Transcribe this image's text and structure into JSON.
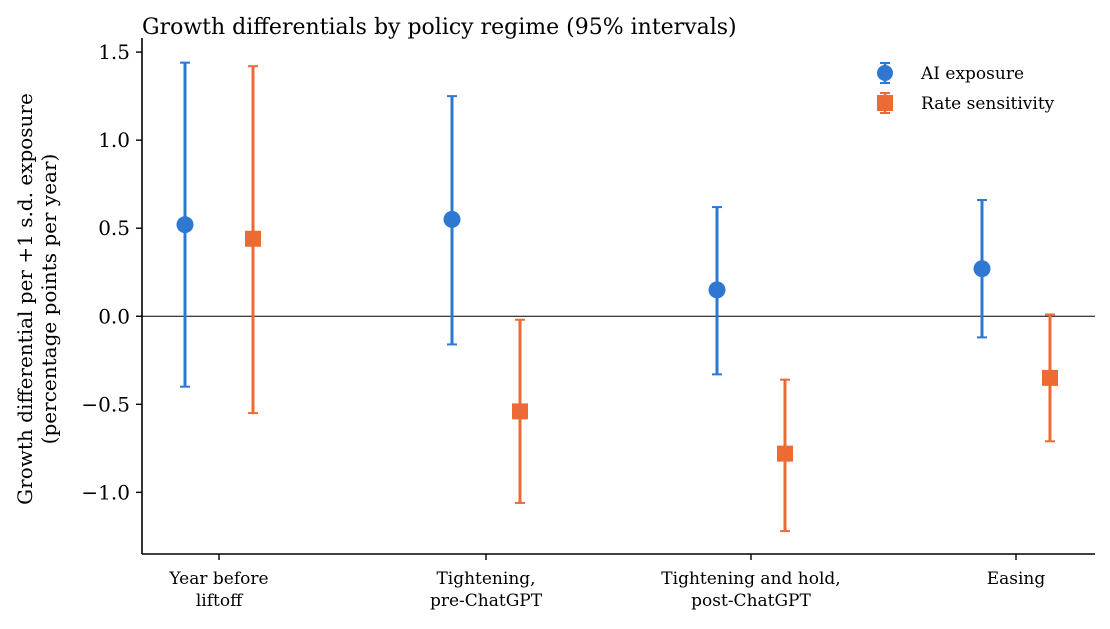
{
  "chart_data": {
    "type": "errorbar",
    "title": "Growth differentials by policy regime (95% intervals)",
    "ylabel_lines": [
      "Growth differential per +1 s.d. exposure",
      "(percentage points per year)"
    ],
    "xlabel": "",
    "categories": [
      {
        "lines": [
          "Year before",
          "liftoff"
        ]
      },
      {
        "lines": [
          "Tightening,",
          "pre-ChatGPT"
        ]
      },
      {
        "lines": [
          "Tightening and hold,",
          "post-ChatGPT"
        ]
      },
      {
        "lines": [
          "Easing"
        ]
      }
    ],
    "ylim": [
      -1.35,
      1.58
    ],
    "yticks": [
      -1.0,
      -0.5,
      0.0,
      0.5,
      1.0,
      1.5
    ],
    "ytick_labels": [
      "−1.0",
      "−0.5",
      "0.0",
      "0.5",
      "1.0",
      "1.5"
    ],
    "zero_line": true,
    "grid": false,
    "legend_position": "top-right",
    "series": [
      {
        "name": "AI exposure",
        "marker": "circle",
        "color": "#2e78d2",
        "points": [
          {
            "y": 0.52,
            "low": -0.4,
            "high": 1.44
          },
          {
            "y": 0.55,
            "low": -0.16,
            "high": 1.25
          },
          {
            "y": 0.15,
            "low": -0.33,
            "high": 0.62
          },
          {
            "y": 0.27,
            "low": -0.12,
            "high": 0.66
          }
        ]
      },
      {
        "name": "Rate sensitivity",
        "marker": "square",
        "color": "#ee6a34",
        "points": [
          {
            "y": 0.44,
            "low": -0.55,
            "high": 1.42
          },
          {
            "y": -0.54,
            "low": -1.06,
            "high": -0.02
          },
          {
            "y": -0.78,
            "low": -1.22,
            "high": -0.36
          },
          {
            "y": -0.35,
            "low": -0.71,
            "high": 0.01
          }
        ]
      }
    ]
  }
}
